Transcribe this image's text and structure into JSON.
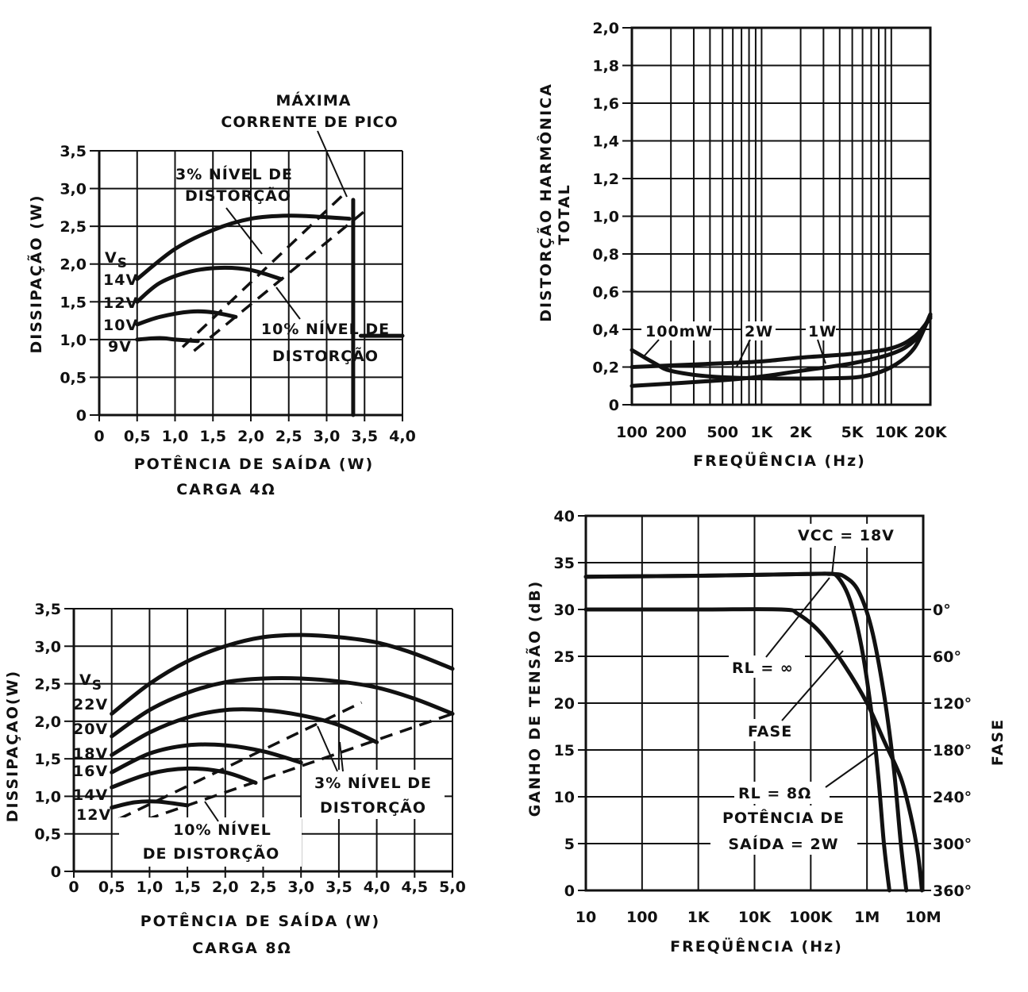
{
  "chart_data": [
    {
      "id": "c1",
      "type": "line",
      "xlabel": "POTÊNCIA DE SAÍDA (W)",
      "sublabel": "CARGA 4Ω",
      "ylabel": "DISSIPAÇÃO (W)",
      "xlim": [
        0,
        4.0
      ],
      "ylim": [
        0,
        3.5
      ],
      "xticks": [
        "0",
        "0,5",
        "1,0",
        "1,5",
        "2,0",
        "2,5",
        "3,0",
        "3,5",
        "4,0"
      ],
      "yticks": [
        "0",
        "0,5",
        "1,0",
        "1,5",
        "2,0",
        "2,5",
        "3,0",
        "3,5"
      ],
      "legend_title": "VS",
      "series": [
        {
          "name": "14V",
          "x": [
            0.5,
            1.0,
            1.5,
            2.0,
            2.5,
            3.0,
            3.3
          ],
          "y": [
            1.8,
            2.2,
            2.45,
            2.6,
            2.64,
            2.62,
            2.6
          ]
        },
        {
          "name": "12V",
          "x": [
            0.5,
            0.8,
            1.2,
            1.6,
            2.0,
            2.4
          ],
          "y": [
            1.5,
            1.75,
            1.9,
            1.95,
            1.92,
            1.8
          ]
        },
        {
          "name": "10V",
          "x": [
            0.5,
            0.8,
            1.2,
            1.5,
            1.8
          ],
          "y": [
            1.2,
            1.3,
            1.37,
            1.36,
            1.3
          ]
        },
        {
          "name": "9V",
          "x": [
            0.5,
            0.8,
            1.0,
            1.3
          ],
          "y": [
            1.0,
            1.02,
            1.0,
            0.98
          ]
        }
      ],
      "lines": [
        {
          "style": "dash",
          "x": [
            1.1,
            3.2
          ],
          "y": [
            0.9,
            2.9
          ]
        },
        {
          "style": "dash",
          "x": [
            1.25,
            3.5
          ],
          "y": [
            0.85,
            2.7
          ]
        },
        {
          "style": "solid",
          "x": [
            3.35,
            3.35
          ],
          "y": [
            0,
            2.85
          ]
        },
        {
          "style": "solid",
          "x": [
            3.45,
            4.0
          ],
          "y": [
            1.05,
            1.05
          ]
        }
      ],
      "annotations": {
        "peak_1": "MÁXIMA",
        "peak_2": "CORRENTE DE PICO",
        "d3_1": "3% NÍVEL DE",
        "d3_2": "DISTORÇÃO",
        "d10_1": "10% NÍVEL DE",
        "d10_2": "DISTORÇÃO"
      }
    },
    {
      "id": "c2",
      "type": "line",
      "xlabel": "FREQÜÊNCIA (Hz)",
      "ylabel_1": "DISTORÇÃO HARMÔNICA",
      "ylabel_2": "TOTAL",
      "xscale": "log",
      "xlim": [
        100,
        20000
      ],
      "ylim": [
        0,
        2.0
      ],
      "xticks": [
        {
          "v": 100,
          "label": "100"
        },
        {
          "v": 200,
          "label": "200"
        },
        {
          "v": 500,
          "label": "500"
        },
        {
          "v": 1000,
          "label": "1K"
        },
        {
          "v": 2000,
          "label": "2K"
        },
        {
          "v": 5000,
          "label": "5K"
        },
        {
          "v": 10000,
          "label": "10K"
        },
        {
          "v": 20000,
          "label": "20K"
        }
      ],
      "yticks": [
        "0",
        "0,2",
        "0,4",
        "0,6",
        "0,8",
        "1,0",
        "1,2",
        "1,4",
        "1,6",
        "1,8",
        "2,0"
      ],
      "series": [
        {
          "name": "100mW",
          "x": [
            100,
            150,
            200,
            400,
            1000,
            3000,
            6000,
            10000,
            15000,
            20000
          ],
          "y": [
            0.29,
            0.22,
            0.18,
            0.15,
            0.14,
            0.14,
            0.15,
            0.2,
            0.3,
            0.48
          ]
        },
        {
          "name": "2W",
          "x": [
            100,
            500,
            1000,
            2000,
            5000,
            10000,
            15000,
            20000
          ],
          "y": [
            0.2,
            0.22,
            0.23,
            0.25,
            0.27,
            0.3,
            0.36,
            0.46
          ]
        },
        {
          "name": "1W",
          "x": [
            100,
            500,
            1000,
            2000,
            5000,
            10000,
            15000,
            20000
          ],
          "y": [
            0.1,
            0.13,
            0.15,
            0.18,
            0.22,
            0.27,
            0.34,
            0.47
          ]
        }
      ]
    },
    {
      "id": "c3",
      "type": "line",
      "xlabel": "POTÊNCIA DE SAÍDA (W)",
      "sublabel": "CARGA 8Ω",
      "ylabel": "DISSIPAÇAO(W)",
      "xlim": [
        0,
        5.0
      ],
      "ylim": [
        0,
        3.5
      ],
      "xticks": [
        "0",
        "0,5",
        "1,0",
        "1,5",
        "2,0",
        "2,5",
        "3,0",
        "3,5",
        "4,0",
        "4,5",
        "5,0"
      ],
      "yticks": [
        "0",
        "0,5",
        "1,0",
        "1,5",
        "2,0",
        "2,5",
        "3,0",
        "3,5"
      ],
      "legend_title": "VS",
      "series": [
        {
          "name": "22V",
          "x": [
            0.5,
            1.0,
            1.5,
            2.0,
            2.5,
            3.0,
            3.5,
            4.0,
            4.5,
            5.0
          ],
          "y": [
            2.1,
            2.5,
            2.8,
            3.0,
            3.12,
            3.15,
            3.12,
            3.05,
            2.9,
            2.7
          ]
        },
        {
          "name": "20V",
          "x": [
            0.5,
            1.0,
            1.5,
            2.0,
            2.5,
            3.0,
            3.5,
            4.0,
            4.5,
            5.0
          ],
          "y": [
            1.8,
            2.15,
            2.38,
            2.52,
            2.57,
            2.57,
            2.53,
            2.45,
            2.3,
            2.1
          ]
        },
        {
          "name": "18V",
          "x": [
            0.5,
            1.0,
            1.5,
            2.0,
            2.5,
            3.0,
            3.5,
            4.0
          ],
          "y": [
            1.55,
            1.85,
            2.05,
            2.15,
            2.15,
            2.08,
            1.95,
            1.72
          ]
        },
        {
          "name": "16V",
          "x": [
            0.5,
            1.0,
            1.5,
            2.0,
            2.5,
            3.0
          ],
          "y": [
            1.32,
            1.57,
            1.68,
            1.68,
            1.6,
            1.45
          ]
        },
        {
          "name": "14V",
          "x": [
            0.5,
            1.0,
            1.5,
            2.0,
            2.4
          ],
          "y": [
            1.12,
            1.3,
            1.37,
            1.32,
            1.18
          ]
        },
        {
          "name": "12V",
          "x": [
            0.5,
            0.8,
            1.1,
            1.5
          ],
          "y": [
            0.85,
            0.92,
            0.93,
            0.88
          ]
        }
      ],
      "lines": [
        {
          "style": "dash",
          "x": [
            0.6,
            3.8
          ],
          "y": [
            0.7,
            2.25
          ]
        },
        {
          "style": "dash",
          "x": [
            0.7,
            5.0
          ],
          "y": [
            0.6,
            2.1
          ]
        }
      ],
      "annotations": {
        "d3_1": "3% NÍVEL DE",
        "d3_2": "DISTORÇÃO",
        "d10_1": "10% NÍVEL",
        "d10_2": "DE DISTORÇÃO"
      }
    },
    {
      "id": "c4",
      "type": "line",
      "xlabel": "FREQÜÊNCIA (Hz)",
      "ylabel": "GANHO DE TENSÃO (dB)",
      "ylabel_right": "FASE",
      "xscale": "log",
      "xlim": [
        10,
        10000000
      ],
      "ylim": [
        0,
        40
      ],
      "xticks": [
        {
          "v": 10,
          "label": "10"
        },
        {
          "v": 100,
          "label": "100"
        },
        {
          "v": 1000,
          "label": "1K"
        },
        {
          "v": 10000,
          "label": "10K"
        },
        {
          "v": 100000,
          "label": "100K"
        },
        {
          "v": 1000000,
          "label": "1M"
        },
        {
          "v": 10000000,
          "label": "10M"
        }
      ],
      "yticks": [
        "0",
        "5",
        "10",
        "15",
        "20",
        "25",
        "30",
        "35",
        "40"
      ],
      "yticks_right": [
        {
          "v": 30,
          "label": "0°"
        },
        {
          "v": 25,
          "label": "60°"
        },
        {
          "v": 20,
          "label": "120°"
        },
        {
          "v": 15,
          "label": "180°"
        },
        {
          "v": 10,
          "label": "240°"
        },
        {
          "v": 5,
          "label": "300°"
        },
        {
          "v": 0,
          "label": "360°"
        }
      ],
      "series": [
        {
          "name": "RL = ∞",
          "x": [
            10,
            1000,
            100000,
            200000,
            300000,
            500000,
            800000,
            1200000,
            1600000,
            2000000,
            2500000
          ],
          "y": [
            33.5,
            33.6,
            33.8,
            33.8,
            33.5,
            31,
            26,
            19,
            12,
            5,
            0
          ]
        },
        {
          "name": "RL = 8Ω",
          "x": [
            10,
            1000,
            100000,
            250000,
            400000,
            700000,
            1200000,
            2000000,
            3000000,
            4000000,
            5000000
          ],
          "y": [
            33.5,
            33.6,
            33.8,
            33.8,
            33.5,
            32,
            28,
            21,
            13,
            5,
            0
          ]
        },
        {
          "name": "FASE",
          "x": [
            10,
            1000,
            30000,
            60000,
            150000,
            400000,
            1000000,
            2000000,
            4000000,
            6000000,
            8000000,
            9500000
          ],
          "y": [
            30,
            30,
            30,
            29.5,
            27.5,
            24,
            20,
            16,
            12,
            8,
            4,
            0
          ]
        }
      ],
      "annotations": {
        "vcc": "VCC = 18V",
        "rl_inf": "RL = ∞",
        "fase": "FASE",
        "rl_8": "RL = 8Ω",
        "pot_1": "POTÊNCIA DE",
        "pot_2": "SAÍDA = 2W"
      }
    }
  ]
}
